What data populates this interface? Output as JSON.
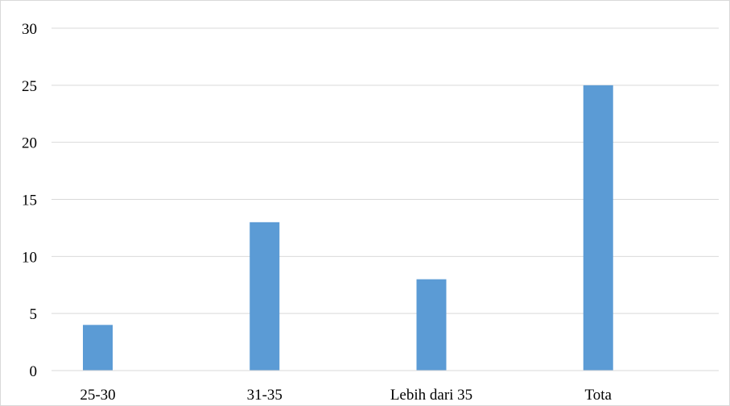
{
  "chart_data": {
    "type": "bar",
    "categories": [
      "25-30",
      "31-35",
      "Lebih dari 35",
      "Tota"
    ],
    "values": [
      4,
      13,
      8,
      25
    ],
    "title": "",
    "xlabel": "",
    "ylabel": "",
    "ylim": [
      0,
      30
    ],
    "yticks": [
      0,
      5,
      10,
      15,
      20,
      25,
      30
    ],
    "grid": true,
    "legend": "none",
    "bar_color": "#5b9bd5",
    "grid_color": "#d9d9d9"
  }
}
